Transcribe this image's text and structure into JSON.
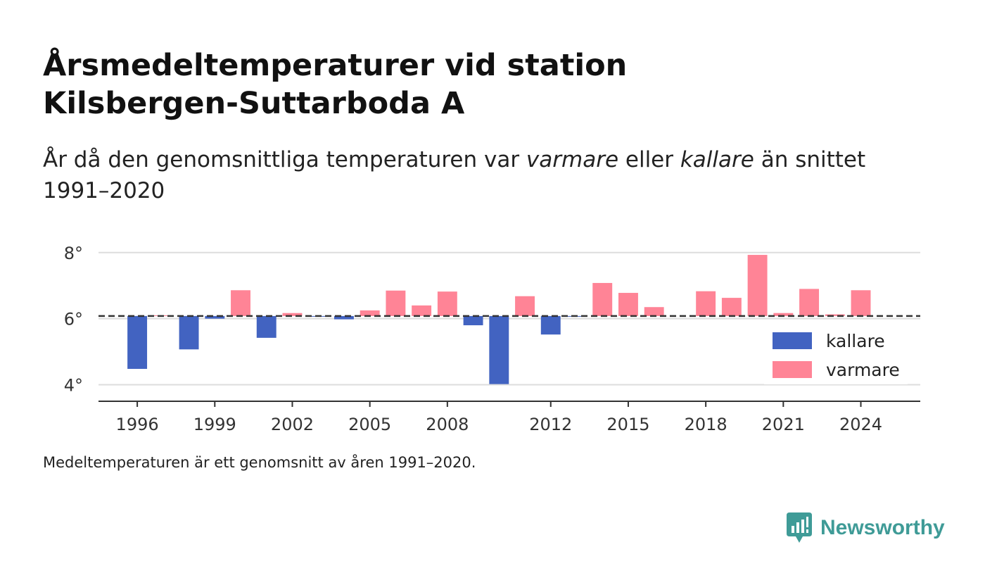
{
  "title": {
    "line1": "Årsmedeltemperaturer vid station",
    "line2": "Kilsbergen-Suttarboda A"
  },
  "subtitle": {
    "prefix": "År då den genomsnittliga temperaturen var ",
    "warm_word": "varmare",
    "middle": " eller ",
    "cold_word": "kallare",
    "suffix": " än snittet",
    "line2": "1991–2020"
  },
  "footnote": "Medeltemperaturen är ett genomsnitt av åren 1991–2020.",
  "brand": {
    "name": "Newsworthy",
    "icon": "newsworthy-logo-icon",
    "color": "#3f9b97"
  },
  "chart_data": {
    "type": "bar",
    "baseline": 6.08,
    "baseline_style": "dashed",
    "ylim": [
      3.5,
      8.4
    ],
    "yticks": [
      4,
      6,
      8
    ],
    "ytick_labels": [
      "4°",
      "6°",
      "8°"
    ],
    "xlim": [
      1994.5,
      2026.3
    ],
    "xticks": [
      1996,
      1999,
      2002,
      2005,
      2008,
      2012,
      2015,
      2018,
      2021,
      2024
    ],
    "xtick_labels": [
      "1996",
      "1999",
      "2002",
      "2005",
      "2008",
      "2012",
      "2015",
      "2018",
      "2021",
      "2024"
    ],
    "grid": true,
    "colors": {
      "kallare": "#4263c1",
      "varmare": "#ff8496"
    },
    "legend": {
      "position": "lower-right",
      "entries": [
        {
          "label": "kallare",
          "color": "#4263c1"
        },
        {
          "label": "varmare",
          "color": "#ff8496"
        }
      ]
    },
    "years": [
      1996,
      1997,
      1998,
      1999,
      2000,
      2001,
      2002,
      2003,
      2004,
      2005,
      2006,
      2007,
      2008,
      2009,
      2010,
      2011,
      2012,
      2013,
      2014,
      2015,
      2016,
      2017,
      2018,
      2019,
      2020,
      2021,
      2022,
      2023,
      2024
    ],
    "values": [
      4.48,
      6.1,
      5.07,
      6.0,
      6.86,
      5.42,
      6.17,
      6.07,
      5.98,
      6.25,
      6.85,
      6.4,
      6.82,
      5.8,
      4.02,
      6.68,
      5.52,
      6.07,
      7.08,
      6.78,
      6.35,
      null,
      6.83,
      6.63,
      7.93,
      6.17,
      6.9,
      6.13,
      6.86
    ]
  }
}
